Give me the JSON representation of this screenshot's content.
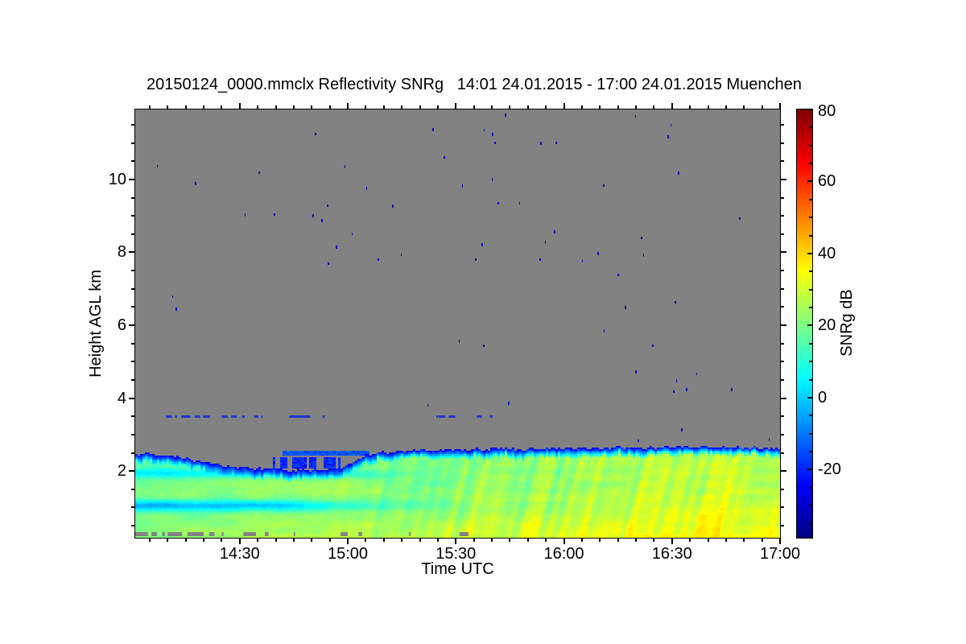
{
  "chart_data": {
    "type": "heatmap",
    "title": "20150124_0000.mmclx Reflectivity SNRg   14:01 24.01.2015 - 17:00 24.01.2015 Muenchen",
    "xlabel": "Time UTC",
    "ylabel": "Height AGL km",
    "x_range": [
      "14:01",
      "17:00"
    ],
    "x_duration_min": 179,
    "x_ticks": [
      {
        "min": 29,
        "label": "14:30"
      },
      {
        "min": 59,
        "label": "15:00"
      },
      {
        "min": 89,
        "label": "15:30"
      },
      {
        "min": 119,
        "label": "16:00"
      },
      {
        "min": 149,
        "label": "16:30"
      },
      {
        "min": 179,
        "label": "17:00"
      }
    ],
    "x_minor_step_min": 5,
    "x_first_minor_min": 4,
    "y_range_km": [
      0.17,
      11.92
    ],
    "y_ticks": [
      2,
      4,
      6,
      8,
      10
    ],
    "y_minor_step_km": 0.5,
    "colorbar": {
      "label": "SNRg dB",
      "min": -38.9,
      "max": 80,
      "ticks": [
        80,
        60,
        40,
        20,
        0,
        -20
      ],
      "minor_step": 5,
      "colormap": "jet"
    },
    "no_data_color": "#828282",
    "frame_color": "#000000",
    "field": {
      "comment": "Boundary-layer echo below ~2.6 km; SNR grows toward ground and toward 17:00 (cyan->green->yellow->orange), dark-blue cap at echo top, no-data gray above.",
      "echo_top_km": [
        [
          0,
          2.48
        ],
        [
          5,
          2.46
        ],
        [
          10,
          2.4
        ],
        [
          15,
          2.33
        ],
        [
          20,
          2.22
        ],
        [
          25,
          2.12
        ],
        [
          30,
          2.07
        ],
        [
          40,
          2.03
        ],
        [
          50,
          2.02
        ],
        [
          57,
          2.06
        ],
        [
          61,
          2.25
        ],
        [
          64,
          2.45
        ],
        [
          68,
          2.52
        ],
        [
          75,
          2.55
        ],
        [
          90,
          2.58
        ],
        [
          110,
          2.61
        ],
        [
          130,
          2.63
        ],
        [
          150,
          2.66
        ],
        [
          165,
          2.66
        ],
        [
          179,
          2.63
        ]
      ],
      "snr_base_db": 14,
      "snr_time_gain_db": 16,
      "snr_low_level_gain_db": 9,
      "low_level_ref_km": 1.5,
      "mid_bump": {
        "h_km": 1.55,
        "sigma_km": 0.35,
        "db": 5.5,
        "fade_t0": 45,
        "fade_t1": 75
      },
      "bands": [
        {
          "h_km": 1.05,
          "sigma_km": 0.11,
          "depth_db": 21,
          "fade_t0": 40,
          "fade_t1": 95
        },
        {
          "h_km": 1.93,
          "sigma_km": 0.09,
          "depth_db": 13,
          "fade_t0": 55,
          "fade_t1": 85
        }
      ],
      "edge": {
        "depth_km": 0.25,
        "cap_db": -26
      },
      "stratiform_noise_db": 5,
      "streak_db": 6.5,
      "streak_onset_min": 45,
      "streak_full_min": 80,
      "fine_noise_db": 3.5,
      "detached_layers": [
        {
          "t0": 36.5,
          "t1": 57,
          "h0": 2.07,
          "h1": 2.38,
          "v_db": -20,
          "fill": 0.62
        },
        {
          "t0": 39,
          "t1": 66,
          "h0": 2.42,
          "h1": 2.57,
          "v_db": -14,
          "fill": 0.8
        }
      ],
      "clutter_gap_segments_min": [
        [
          0,
          3.5
        ],
        [
          4.5,
          6
        ],
        [
          7.5,
          8.2
        ],
        [
          9,
          13
        ],
        [
          14.5,
          19
        ],
        [
          20.5,
          22
        ],
        [
          24,
          24.5
        ],
        [
          30,
          33.5
        ],
        [
          36,
          37
        ],
        [
          44,
          44.4
        ],
        [
          57,
          59
        ],
        [
          62,
          63
        ],
        [
          76,
          76.5
        ],
        [
          90,
          92.5
        ]
      ],
      "dashed_line": {
        "h_km": 3.5,
        "color": "#2336cf",
        "segments_min": [
          [
            8.5,
            10.2
          ],
          [
            11,
            11.6
          ],
          [
            12.8,
            15.3
          ],
          [
            16.5,
            18
          ],
          [
            18.8,
            20.8
          ],
          [
            24,
            25.7
          ],
          [
            26.6,
            28.2
          ],
          [
            29.7,
            30.4
          ],
          [
            33,
            34.2
          ],
          [
            35,
            35.4
          ],
          [
            42.8,
            48.6
          ],
          [
            52,
            52.6
          ],
          [
            83.6,
            84
          ],
          [
            84.2,
            86.1
          ],
          [
            87,
            88.9
          ],
          [
            94.8,
            96.2
          ],
          [
            98.5,
            99.2
          ]
        ]
      },
      "speckle_color": "#0a12b6",
      "speckles_t_h": [
        [
          6.3,
          10.35
        ],
        [
          16.8,
          9.89
        ],
        [
          34.4,
          10.18
        ],
        [
          30.6,
          9.03
        ],
        [
          38.7,
          9.03
        ],
        [
          49.4,
          9.0
        ],
        [
          10.5,
          6.77
        ],
        [
          11.4,
          6.44
        ],
        [
          50.0,
          11.24
        ],
        [
          58.3,
          10.35
        ],
        [
          53.4,
          9.27
        ],
        [
          51.8,
          8.87
        ],
        [
          60.3,
          8.5
        ],
        [
          55.9,
          8.14
        ],
        [
          53.6,
          7.68
        ],
        [
          64.4,
          9.76
        ],
        [
          67.5,
          7.79
        ],
        [
          71.5,
          9.27
        ],
        [
          74.0,
          7.92
        ],
        [
          82.7,
          11.37
        ],
        [
          85.8,
          10.6
        ],
        [
          91.0,
          9.82
        ],
        [
          94.5,
          7.79
        ],
        [
          96.3,
          8.21
        ],
        [
          97.0,
          11.35
        ],
        [
          99.2,
          11.24
        ],
        [
          99.9,
          11.0
        ],
        [
          99.2,
          10.0
        ],
        [
          100.8,
          9.34
        ],
        [
          102.8,
          11.77
        ],
        [
          106.8,
          9.34
        ],
        [
          112.6,
          11.0
        ],
        [
          112.4,
          7.79
        ],
        [
          114.0,
          8.28
        ],
        [
          116.9,
          11.0
        ],
        [
          116.4,
          8.56
        ],
        [
          124.2,
          7.75
        ],
        [
          128.5,
          7.97
        ],
        [
          130.1,
          9.82
        ],
        [
          130.3,
          5.85
        ],
        [
          134.1,
          7.37
        ],
        [
          136.1,
          6.49
        ],
        [
          139.0,
          11.73
        ],
        [
          139.0,
          4.72
        ],
        [
          140.6,
          8.39
        ],
        [
          141.2,
          7.92
        ],
        [
          143.7,
          5.43
        ],
        [
          147.9,
          11.17
        ],
        [
          148.8,
          11.48
        ],
        [
          150.8,
          10.18
        ],
        [
          150.0,
          6.62
        ],
        [
          150.4,
          4.48
        ],
        [
          149.5,
          4.17
        ],
        [
          153.1,
          4.23
        ],
        [
          156.0,
          4.65
        ],
        [
          165.6,
          4.23
        ],
        [
          167.8,
          8.92
        ],
        [
          90.1,
          5.56
        ],
        [
          96.8,
          5.43
        ],
        [
          103.7,
          3.86
        ],
        [
          81.3,
          3.79
        ],
        [
          151.7,
          3.13
        ],
        [
          139.7,
          2.82
        ],
        [
          176.0,
          2.86
        ]
      ]
    }
  }
}
